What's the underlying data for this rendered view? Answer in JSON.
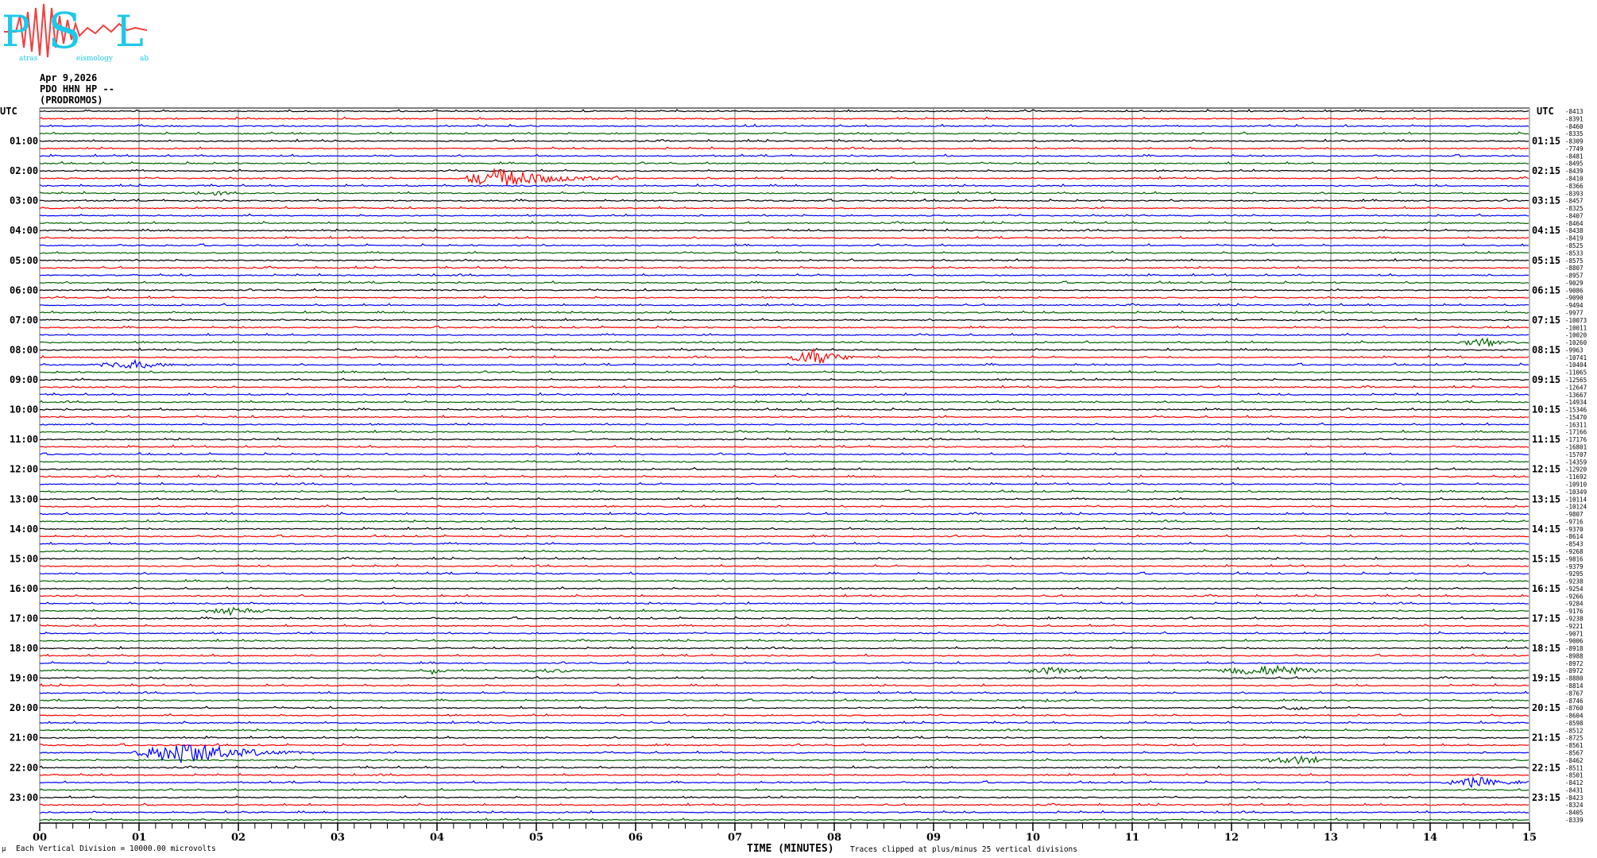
{
  "logo": {
    "text": "Patras Seismology Lab",
    "letters": "PSL",
    "colors": {
      "text": "#1ec8e8",
      "wave": "#f04040"
    }
  },
  "header": {
    "date": "Apr 9,2026",
    "station": "PDO HHN HP --",
    "site": "(PRODROMOS)"
  },
  "footer": {
    "scale": "Each Vertical Division = 10000.00 microvolts",
    "xlabel": "TIME (MINUTES)",
    "clip_note": "Traces clipped at plus/minus 25 vertical divisions",
    "corner_mark": "µ"
  },
  "chart_data": {
    "type": "line",
    "subtype": "helicorder",
    "xlabel": "TIME (MINUTES)",
    "xlim": [
      0,
      15
    ],
    "x_ticks": [
      "00",
      "01",
      "02",
      "03",
      "04",
      "05",
      "06",
      "07",
      "08",
      "09",
      "10",
      "11",
      "12",
      "13",
      "14",
      "15"
    ],
    "minor_ticks_per_minute": 6,
    "grid": "vertical lines every minute",
    "left_axis_title": "UTC",
    "right_axis_title": "UTC",
    "left_labels": [
      "01:00",
      "02:00",
      "03:00",
      "04:00",
      "05:00",
      "06:00",
      "07:00",
      "08:00",
      "09:00",
      "10:00",
      "11:00",
      "12:00",
      "13:00",
      "14:00",
      "15:00",
      "16:00",
      "17:00",
      "18:00",
      "19:00",
      "20:00",
      "21:00",
      "22:00",
      "23:00"
    ],
    "right_labels": [
      "01:15",
      "02:15",
      "03:15",
      "04:15",
      "05:15",
      "06:15",
      "07:15",
      "08:15",
      "09:15",
      "10:15",
      "11:15",
      "12:15",
      "13:15",
      "14:15",
      "15:15",
      "16:15",
      "17:15",
      "18:15",
      "19:15",
      "20:15",
      "21:15",
      "22:15",
      "23:15"
    ],
    "trace_colors": [
      "#000000",
      "#ff0000",
      "#0000ff",
      "#006400"
    ],
    "trace_offsets": [
      -8413,
      -8391,
      -8460,
      -8335,
      -8309,
      -7749,
      -8481,
      -8495,
      -8439,
      -8410,
      -8366,
      -8393,
      -8457,
      -8325,
      -8407,
      -8464,
      -8438,
      -8419,
      -8525,
      -8533,
      -8575,
      -8807,
      -8957,
      -9029,
      -9086,
      -9090,
      -9494,
      -9977,
      -10073,
      -10011,
      -10020,
      -10260,
      -9963,
      -10741,
      -10404,
      -11065,
      -12565,
      -12647,
      -13667,
      -14934,
      -15346,
      -15470,
      -16311,
      -17166,
      -17176,
      -16801,
      -15707,
      -14359,
      -12920,
      -11692,
      -10910,
      -10349,
      -10114,
      -10124,
      -9807,
      -9716,
      -9370,
      -8614,
      -8543,
      -9268,
      -9816,
      -9379,
      -9295,
      -9238,
      -9254,
      -9266,
      -9284,
      -9176,
      -9238,
      -9221,
      -9071,
      -9006,
      -8918,
      -8988,
      -8972,
      -8972,
      -8880,
      -8814,
      -8767,
      -8746,
      -8760,
      -8604,
      -8598,
      -8512,
      -8725,
      -8561,
      -8567,
      -8462,
      -8511,
      -8501,
      -8412,
      -8431,
      -8423,
      -8324,
      -8405,
      -8339
    ],
    "events": [
      {
        "trace": 9,
        "start": 4.2,
        "peak": 4.6,
        "end": 6.0,
        "amplitude": 2.5
      },
      {
        "trace": 11,
        "start": 1.5,
        "peak": 1.8,
        "end": 2.0,
        "amplitude": 0.4
      },
      {
        "trace": 31,
        "start": 14.2,
        "peak": 14.6,
        "end": 15.0,
        "amplitude": 1.0
      },
      {
        "trace": 33,
        "start": 7.5,
        "peak": 7.8,
        "end": 8.4,
        "amplitude": 2.0
      },
      {
        "trace": 34,
        "start": 0.5,
        "peak": 0.95,
        "end": 1.6,
        "amplitude": 1.0
      },
      {
        "trace": 67,
        "start": 1.6,
        "peak": 1.95,
        "end": 2.5,
        "amplitude": 1.0
      },
      {
        "trace": 75,
        "start": 3.9,
        "peak": 3.95,
        "end": 4.2,
        "amplitude": 0.8
      },
      {
        "trace": 75,
        "start": 4.8,
        "peak": 5.2,
        "end": 5.6,
        "amplitude": 0.4
      },
      {
        "trace": 75,
        "start": 9.8,
        "peak": 10.2,
        "end": 10.7,
        "amplitude": 0.8
      },
      {
        "trace": 75,
        "start": 11.6,
        "peak": 12.5,
        "end": 13.3,
        "amplitude": 1.3
      },
      {
        "trace": 79,
        "start": 10.0,
        "peak": 10.2,
        "end": 10.4,
        "amplitude": 0.4
      },
      {
        "trace": 80,
        "start": 12.4,
        "peak": 12.7,
        "end": 12.9,
        "amplitude": 0.4
      },
      {
        "trace": 86,
        "start": 0.9,
        "peak": 1.45,
        "end": 2.8,
        "amplitude": 3.0
      },
      {
        "trace": 87,
        "start": 12.2,
        "peak": 12.7,
        "end": 13.2,
        "amplitude": 0.9
      },
      {
        "trace": 90,
        "start": 14.1,
        "peak": 14.5,
        "end": 15.0,
        "amplitude": 1.3
      }
    ]
  }
}
